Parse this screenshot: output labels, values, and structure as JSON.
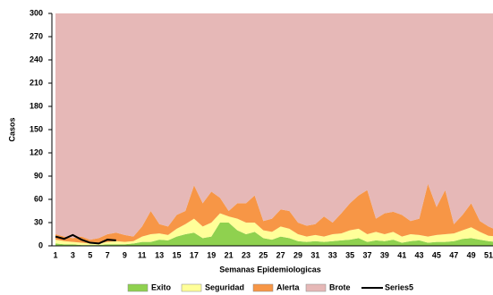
{
  "chart_data": {
    "type": "stacked-area",
    "y_label": "Casos",
    "x_label": "Semanas Epidemiologicas",
    "categories": [
      "1",
      null,
      "3",
      null,
      "5",
      null,
      "7",
      null,
      "9",
      null,
      "11",
      null,
      "13",
      null,
      "15",
      null,
      "17",
      null,
      "19",
      null,
      "21",
      null,
      "23",
      null,
      "25",
      null,
      "27",
      null,
      "29",
      null,
      "31",
      null,
      "33",
      null,
      "35",
      null,
      "37",
      null,
      "39",
      null,
      "41",
      null,
      "43",
      null,
      "45",
      null,
      "47",
      null,
      "49",
      null,
      "51",
      null
    ],
    "ylim": [
      0,
      300
    ],
    "yticks": [
      0,
      30,
      60,
      90,
      120,
      150,
      180,
      210,
      240,
      270,
      300
    ],
    "series": [
      {
        "name": "Exito",
        "color": "#8fd14f",
        "values": [
          3,
          2,
          2,
          1,
          1,
          1,
          2,
          2,
          2,
          3,
          5,
          5,
          8,
          7,
          12,
          15,
          17,
          10,
          12,
          30,
          30,
          20,
          15,
          18,
          10,
          8,
          12,
          10,
          6,
          5,
          6,
          5,
          6,
          7,
          8,
          10,
          5,
          7,
          6,
          8,
          4,
          6,
          7,
          4,
          5,
          5,
          6,
          9,
          10,
          8,
          6,
          5
        ]
      },
      {
        "name": "Seguridad",
        "color": "#ffff99",
        "values": [
          5,
          4,
          3,
          3,
          2,
          2,
          3,
          4,
          3,
          3,
          7,
          10,
          8,
          7,
          10,
          13,
          18,
          15,
          18,
          12,
          8,
          15,
          15,
          12,
          10,
          10,
          13,
          12,
          9,
          7,
          8,
          7,
          9,
          9,
          12,
          12,
          10,
          11,
          9,
          10,
          8,
          9,
          7,
          8,
          9,
          10,
          10,
          11,
          14,
          10,
          7,
          7
        ]
      },
      {
        "name": "Alerta",
        "color": "#f79646",
        "values": [
          7,
          6,
          5,
          8,
          5,
          7,
          10,
          11,
          9,
          6,
          13,
          30,
          12,
          11,
          18,
          17,
          43,
          30,
          40,
          20,
          7,
          20,
          25,
          35,
          12,
          17,
          22,
          23,
          15,
          14,
          14,
          26,
          15,
          26,
          35,
          43,
          57,
          17,
          27,
          26,
          28,
          17,
          21,
          68,
          36,
          57,
          12,
          20,
          31,
          14,
          12,
          8
        ]
      },
      {
        "name": "Brote",
        "color": "#e6b8b7",
        "values": [
          285,
          288,
          290,
          288,
          292,
          290,
          285,
          283,
          286,
          288,
          275,
          255,
          272,
          275,
          260,
          255,
          222,
          245,
          230,
          238,
          255,
          245,
          245,
          235,
          268,
          265,
          253,
          255,
          270,
          274,
          272,
          262,
          270,
          258,
          245,
          235,
          228,
          265,
          258,
          256,
          260,
          268,
          265,
          220,
          250,
          228,
          272,
          260,
          245,
          268,
          275,
          280
        ]
      },
      {
        "name": "Series5",
        "color": "#000000",
        "type": "line",
        "values": [
          12,
          9,
          14,
          8,
          4,
          3,
          8,
          7,
          null,
          null,
          null,
          null,
          null,
          null,
          null,
          null,
          null,
          null,
          null,
          null,
          null,
          null,
          null,
          null,
          null,
          null,
          null,
          null,
          null,
          null,
          null,
          null,
          null,
          null,
          null,
          null,
          null,
          null,
          null,
          null,
          null,
          null,
          null,
          null,
          null,
          null,
          null,
          null,
          null,
          null,
          null,
          null
        ]
      }
    ]
  }
}
